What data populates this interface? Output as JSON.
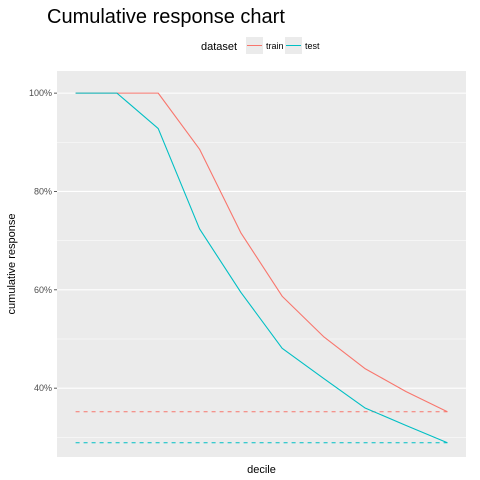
{
  "chart_data": {
    "type": "line",
    "title": "Cumulative response chart",
    "xlabel": "decile",
    "ylabel": "cumulative response",
    "x": [
      1,
      2,
      3,
      4,
      5,
      6,
      7,
      8,
      9,
      10
    ],
    "xlim": [
      0.55,
      10.45
    ],
    "ylim": [
      0.26,
      1.045
    ],
    "y_ticks": [
      0.4,
      0.6,
      0.8,
      1.0
    ],
    "y_tick_labels": [
      "40%",
      "60%",
      "80%",
      "100%"
    ],
    "x_ticks_shown": false,
    "grid": true,
    "legend": {
      "title": "dataset",
      "position": "top",
      "entries": [
        "train",
        "test"
      ]
    },
    "series": [
      {
        "name": "train",
        "color": "#F8766D",
        "style": "solid",
        "values": [
          1.0,
          1.0,
          1.0,
          0.886,
          0.716,
          0.587,
          0.505,
          0.44,
          0.393,
          0.352
        ]
      },
      {
        "name": "test",
        "color": "#00BFC4",
        "style": "solid",
        "values": [
          1.0,
          1.0,
          0.928,
          0.724,
          0.595,
          0.481,
          0.42,
          0.36,
          0.324,
          0.289
        ]
      }
    ],
    "reference_lines": [
      {
        "series": "train",
        "color": "#F8766D",
        "style": "dashed",
        "value": 0.352
      },
      {
        "series": "test",
        "color": "#00BFC4",
        "style": "dashed",
        "value": 0.289
      }
    ]
  }
}
